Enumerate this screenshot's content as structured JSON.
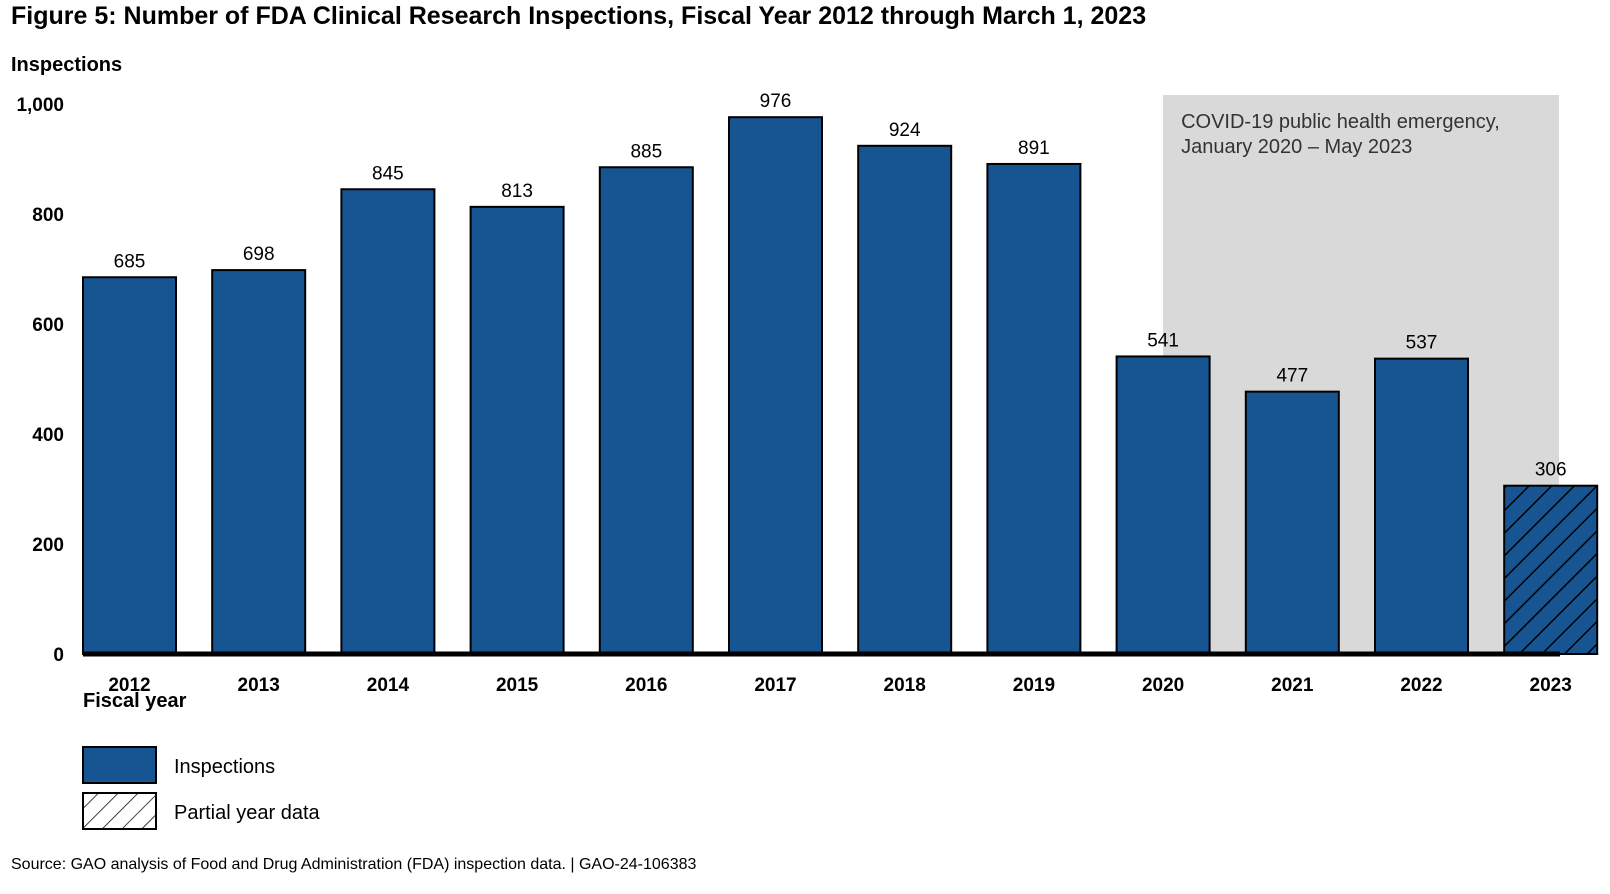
{
  "chart_data": {
    "type": "bar",
    "title": "Figure 5: Number of FDA Clinical Research Inspections, Fiscal Year 2012 through March 1, 2023",
    "ylabel": "Inspections",
    "xlabel": "Fiscal year",
    "ylim": [
      0,
      1000
    ],
    "yticks": [
      0,
      200,
      400,
      600,
      800,
      1000
    ],
    "ytick_labels": [
      "0",
      "200",
      "400",
      "600",
      "800",
      "1,000"
    ],
    "categories": [
      "2012",
      "2013",
      "2014",
      "2015",
      "2016",
      "2017",
      "2018",
      "2019",
      "2020",
      "2021",
      "2022",
      "2023"
    ],
    "series": [
      {
        "name": "Inspections",
        "values": [
          685,
          698,
          845,
          813,
          885,
          976,
          924,
          891,
          541,
          477,
          537,
          306
        ],
        "partial": [
          false,
          false,
          false,
          false,
          false,
          false,
          false,
          false,
          false,
          false,
          false,
          true
        ]
      }
    ],
    "annotation": {
      "lines": [
        "COVID-19 public health emergency,",
        "January 2020 – May 2023"
      ],
      "start_category": "2020"
    },
    "legend": [
      {
        "label": "Inspections",
        "style": "solid"
      },
      {
        "label": "Partial year data",
        "style": "hatched"
      }
    ],
    "legend_position": "bottom-left",
    "grid": false,
    "colors": {
      "bar": "#165592",
      "shade": "#d9d9d9",
      "axis": "#000000"
    },
    "source": "Source: GAO analysis of Food and Drug Administration (FDA) inspection data.  |  GAO-24-106383"
  }
}
